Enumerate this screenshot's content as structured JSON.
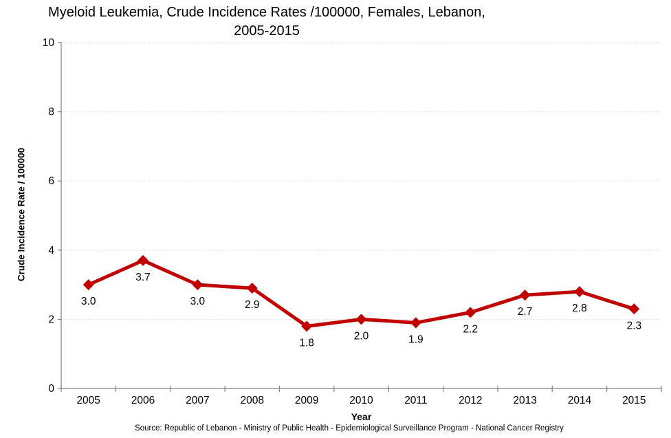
{
  "chart_data": {
    "type": "line",
    "title": "Myeloid Leukemia, Crude Incidence Rates /100000, Females, Lebanon, 2005-2015",
    "title_lines": [
      "Myeloid Leukemia, Crude Incidence Rates /100000, Females, Lebanon,",
      "2005-2015"
    ],
    "categories": [
      "2005",
      "2006",
      "2007",
      "2008",
      "2009",
      "2010",
      "2011",
      "2012",
      "2013",
      "2014",
      "2015"
    ],
    "values": [
      3.0,
      3.7,
      3.0,
      2.9,
      1.8,
      2.0,
      1.9,
      2.2,
      2.7,
      2.8,
      2.3
    ],
    "data_labels": [
      "3.0",
      "3.7",
      "3.0",
      "2.9",
      "1.8",
      "2.0",
      "1.9",
      "2.2",
      "2.7",
      "2.8",
      "2.3"
    ],
    "xlabel": "Year",
    "ylabel": "Crude Incidence Rate / 100000",
    "ylim": [
      0,
      10
    ],
    "yticks": [
      0,
      2,
      4,
      6,
      8,
      10
    ],
    "grid": "horizontal-dotted",
    "legend": "none",
    "marker": "diamond",
    "colors": {
      "series": "#C00000",
      "gridline": "#D9D9D9",
      "axis": "#7F7F7F",
      "text": "#000000"
    },
    "source": "Source: Republic of Lebanon - Ministry of Public Health - Epidemiological Surveillance Program - National Cancer Registry"
  }
}
